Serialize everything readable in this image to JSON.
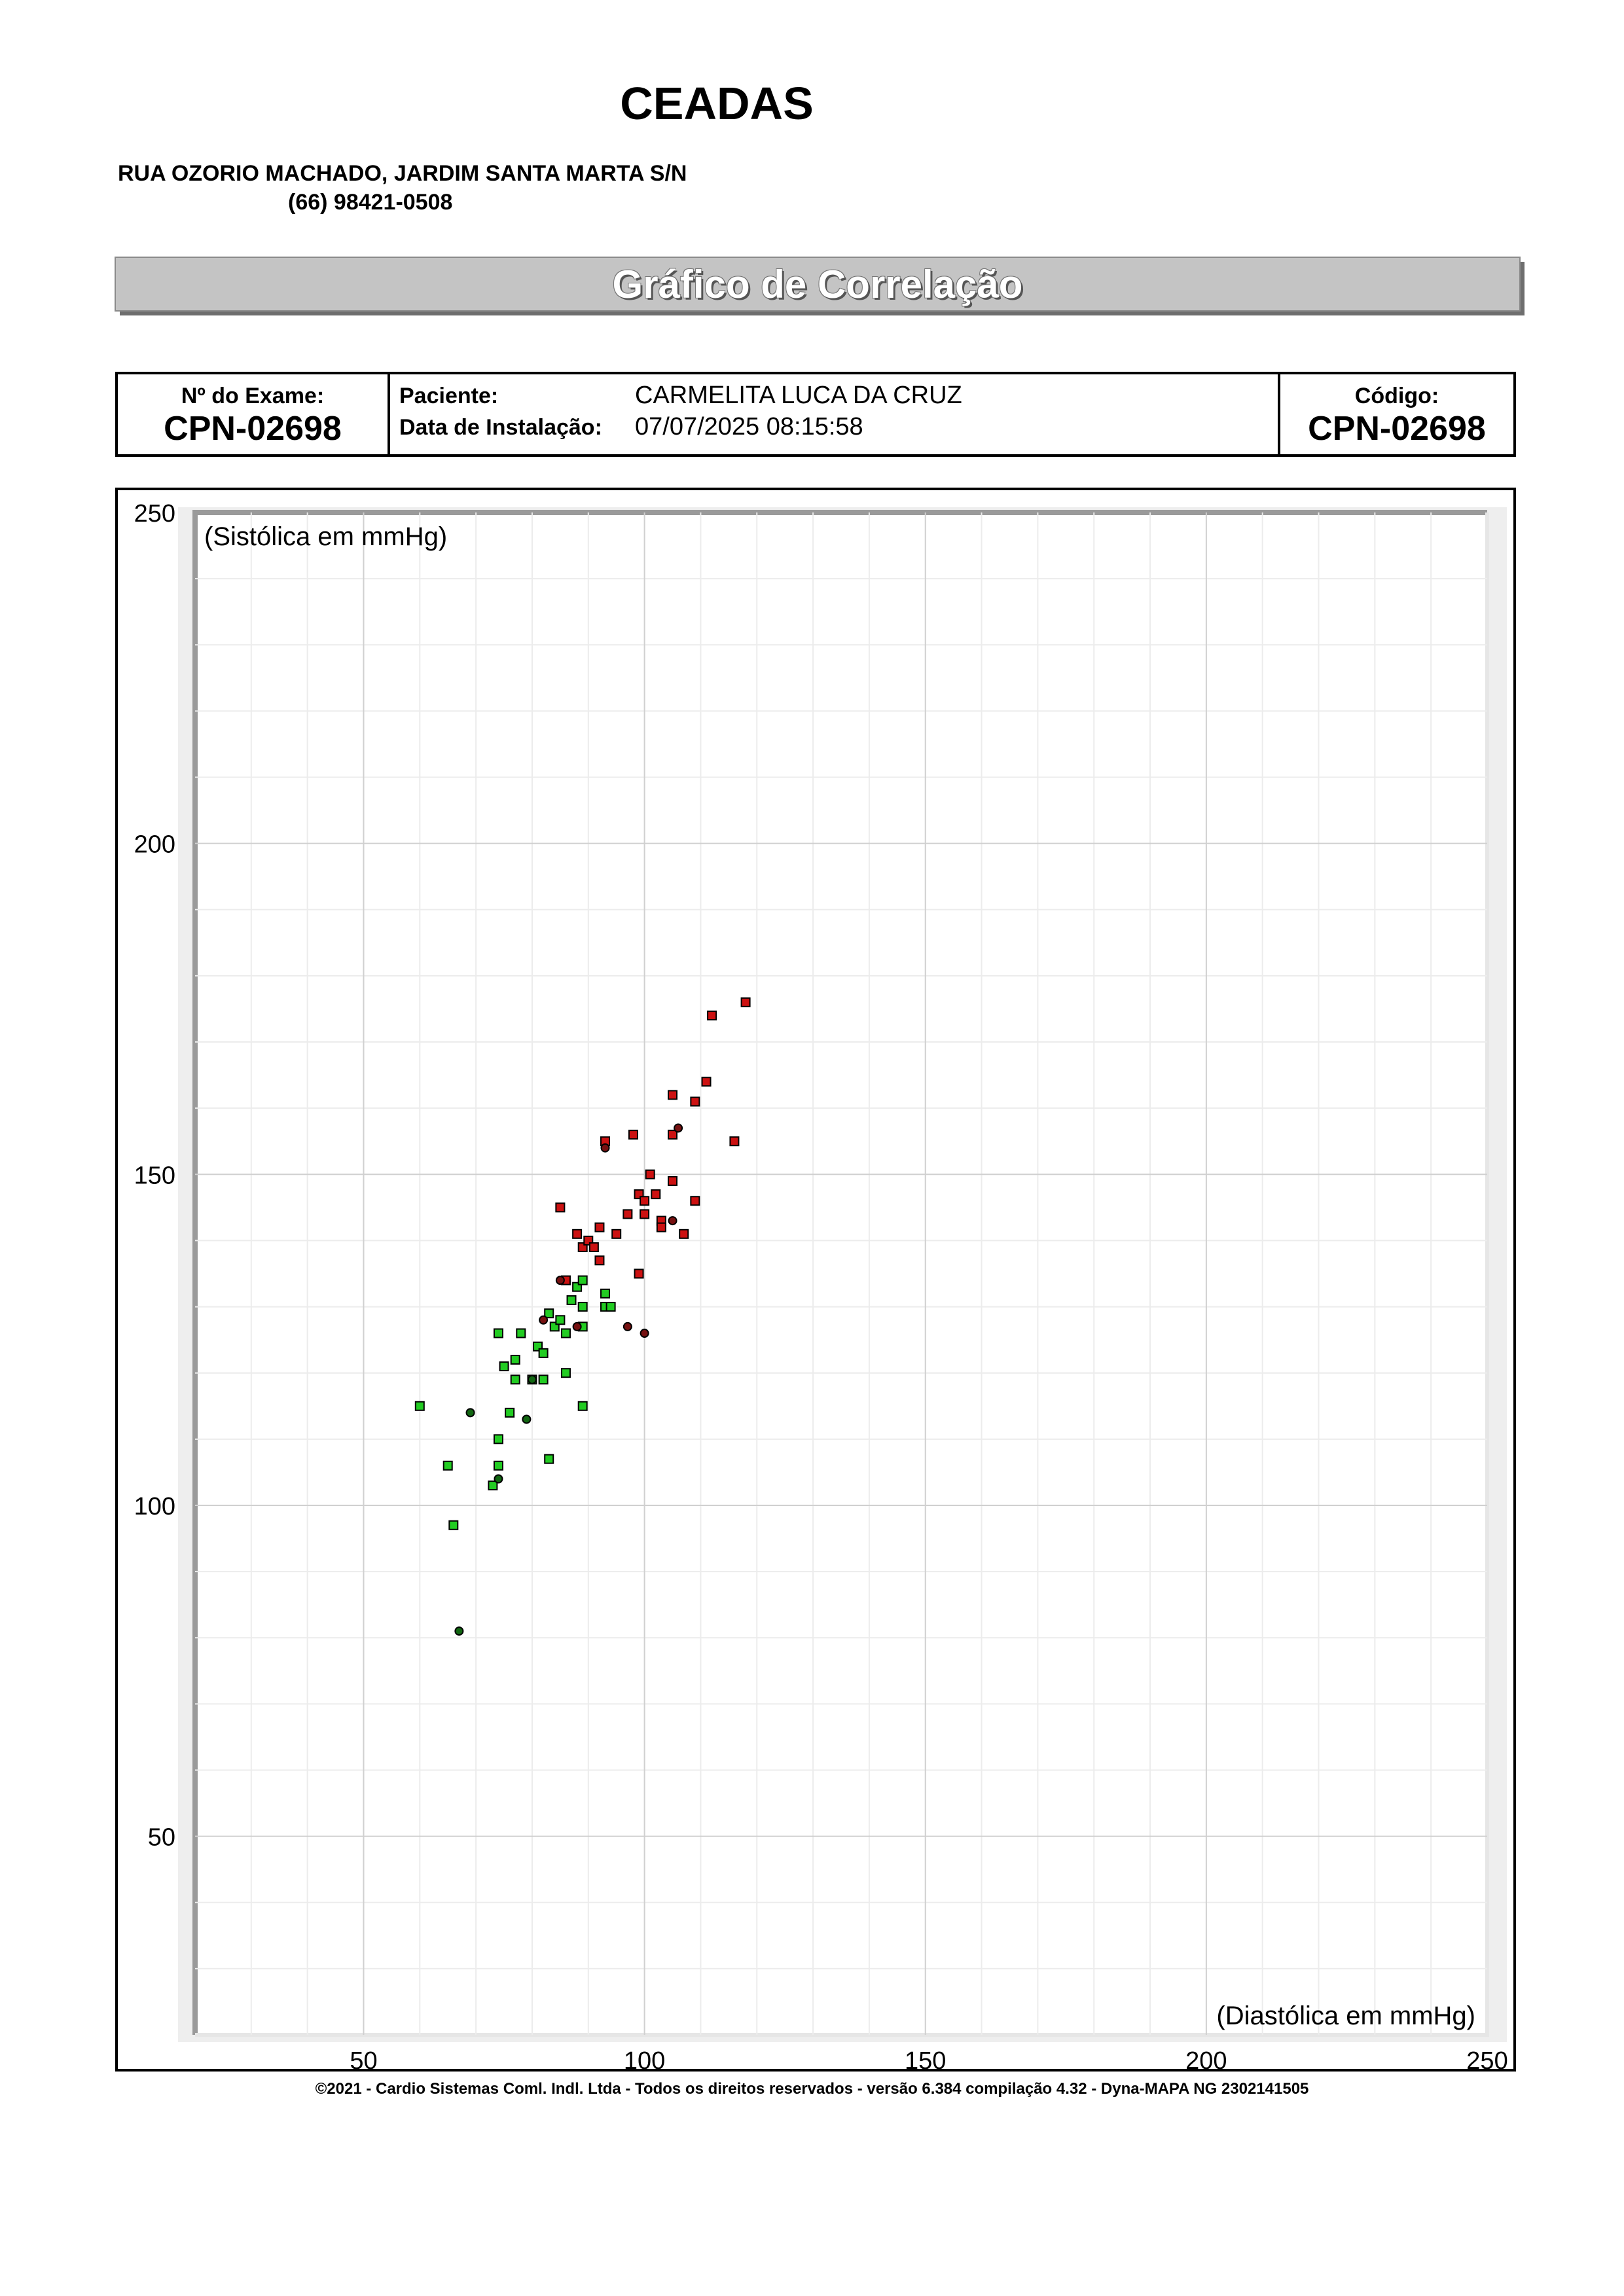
{
  "header": {
    "clinic_name": "CEADAS",
    "address": "RUA OZORIO MACHADO, JARDIM SANTA MARTA S/N",
    "phone": "(66) 98421-0508"
  },
  "banner": {
    "title": "Gráfico de Correlação"
  },
  "exam_info": {
    "exam_label": "Nº do Exame:",
    "exam_number": "CPN-02698",
    "patient_label": "Paciente:",
    "patient_name": "CARMELITA LUCA DA  CRUZ",
    "install_label": "Data de Instalação:",
    "install_datetime": "07/07/2025 08:15:58",
    "code_label": "Código:",
    "code_value": "CPN-02698"
  },
  "chart_data": {
    "type": "scatter",
    "title": "",
    "xlabel": "(Diastólica em mmHg)",
    "ylabel": "(Sistólica em mmHg)",
    "xlim": [
      20,
      250
    ],
    "ylim": [
      20,
      250
    ],
    "xticks": [
      50,
      100,
      150,
      200,
      250
    ],
    "yticks": [
      50,
      100,
      150,
      200,
      250
    ],
    "grid": true,
    "colors": {
      "green": "#22cc22",
      "red": "#cc1111",
      "dark_green": "#116611",
      "dark_red": "#771111"
    },
    "series": [
      {
        "color": "green",
        "marker": "square",
        "points": [
          [
            60,
            115
          ],
          [
            65,
            106
          ],
          [
            66,
            97
          ],
          [
            73,
            103
          ],
          [
            74,
            110
          ],
          [
            74,
            106
          ],
          [
            74,
            126
          ],
          [
            75,
            121
          ],
          [
            76,
            114
          ],
          [
            77,
            122
          ],
          [
            77,
            119
          ],
          [
            78,
            126
          ],
          [
            80,
            119
          ],
          [
            81,
            124
          ],
          [
            82,
            123
          ],
          [
            82,
            119
          ],
          [
            83,
            129
          ],
          [
            83,
            107
          ],
          [
            84,
            127
          ],
          [
            85,
            128
          ],
          [
            86,
            126
          ],
          [
            86,
            120
          ],
          [
            87,
            131
          ],
          [
            88,
            133
          ],
          [
            89,
            130
          ],
          [
            89,
            134
          ],
          [
            89,
            127
          ],
          [
            89,
            115
          ],
          [
            93,
            132
          ],
          [
            93,
            130
          ],
          [
            94,
            130
          ]
        ]
      },
      {
        "color": "red",
        "marker": "square",
        "points": [
          [
            85,
            145
          ],
          [
            86,
            134
          ],
          [
            88,
            141
          ],
          [
            89,
            139
          ],
          [
            90,
            140
          ],
          [
            91,
            139
          ],
          [
            92,
            142
          ],
          [
            92,
            137
          ],
          [
            93,
            155
          ],
          [
            95,
            141
          ],
          [
            97,
            144
          ],
          [
            98,
            156
          ],
          [
            99,
            135
          ],
          [
            99,
            147
          ],
          [
            100,
            146
          ],
          [
            100,
            144
          ],
          [
            101,
            150
          ],
          [
            102,
            147
          ],
          [
            103,
            143
          ],
          [
            103,
            142
          ],
          [
            105,
            149
          ],
          [
            105,
            156
          ],
          [
            105,
            162
          ],
          [
            107,
            141
          ],
          [
            109,
            161
          ],
          [
            109,
            146
          ],
          [
            111,
            164
          ],
          [
            112,
            174
          ],
          [
            116,
            155
          ],
          [
            118,
            176
          ]
        ]
      },
      {
        "color": "dark_green",
        "marker": "circle",
        "points": [
          [
            67,
            81
          ],
          [
            69,
            114
          ],
          [
            74,
            104
          ],
          [
            79,
            113
          ],
          [
            80,
            119
          ]
        ]
      },
      {
        "color": "dark_red",
        "marker": "circle",
        "points": [
          [
            82,
            128
          ],
          [
            85,
            134
          ],
          [
            88,
            127
          ],
          [
            93,
            154
          ],
          [
            97,
            127
          ],
          [
            100,
            126
          ],
          [
            105,
            143
          ],
          [
            106,
            157
          ]
        ]
      }
    ]
  },
  "footer": {
    "text": "©2021 - Cardio Sistemas Coml. Indl. Ltda - Todos os direitos reservados - versão 6.384 compilação 4.32 - Dyna-MAPA NG 2302141505"
  }
}
